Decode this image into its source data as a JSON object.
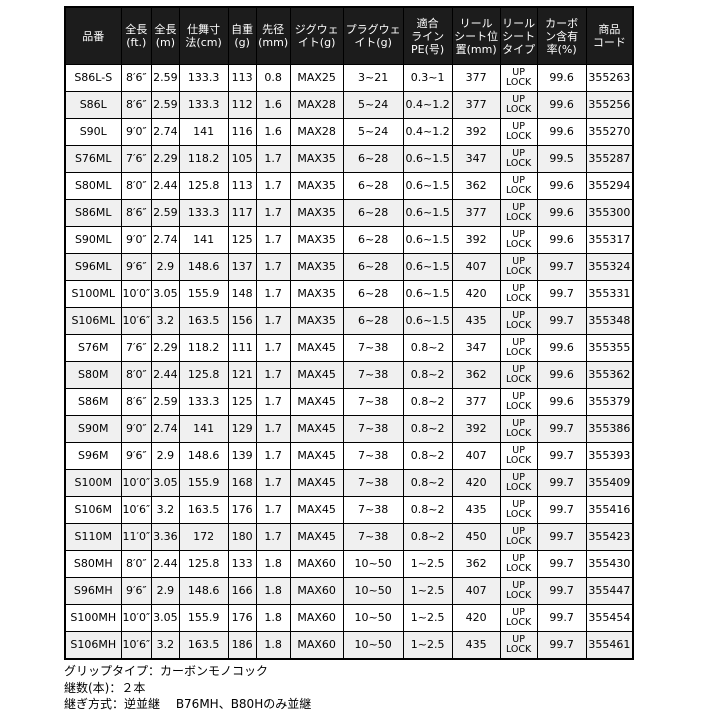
{
  "colors": {
    "header_bg": "#1c1c1c",
    "header_text": "#ffffff",
    "row_bg": "#ffffff",
    "row_alt_bg": "#f0f0f0",
    "border": "#000000"
  },
  "table": {
    "headers": [
      "品番",
      "全長\n(ft.)",
      "全長\n(m)",
      "仕舞寸\n法(cm)",
      "自重\n(g)",
      "先径\n(mm)",
      "ジグウェ\nイト(g)",
      "プラグウェ\nイト(g)",
      "適合\nライン\nPE(号)",
      "リール\nシート位\n置(mm)",
      "リール\nシート\nタイプ",
      "カーボ\nン含有\n率(%)",
      "商品\nコード"
    ],
    "rows": [
      [
        "S86L-S",
        "8′6″",
        "2.59",
        "133.3",
        "113",
        "0.8",
        "MAX25",
        "3~21",
        "0.3~1",
        "377",
        "UP\nLOCK",
        "99.6",
        "355263"
      ],
      [
        "S86L",
        "8′6″",
        "2.59",
        "133.3",
        "112",
        "1.6",
        "MAX28",
        "5~24",
        "0.4~1.2",
        "377",
        "UP\nLOCK",
        "99.6",
        "355256"
      ],
      [
        "S90L",
        "9′0″",
        "2.74",
        "141",
        "116",
        "1.6",
        "MAX28",
        "5~24",
        "0.4~1.2",
        "392",
        "UP\nLOCK",
        "99.6",
        "355270"
      ],
      [
        "S76ML",
        "7′6″",
        "2.29",
        "118.2",
        "105",
        "1.7",
        "MAX35",
        "6~28",
        "0.6~1.5",
        "347",
        "UP\nLOCK",
        "99.5",
        "355287"
      ],
      [
        "S80ML",
        "8′0″",
        "2.44",
        "125.8",
        "113",
        "1.7",
        "MAX35",
        "6~28",
        "0.6~1.5",
        "362",
        "UP\nLOCK",
        "99.6",
        "355294"
      ],
      [
        "S86ML",
        "8′6″",
        "2.59",
        "133.3",
        "117",
        "1.7",
        "MAX35",
        "6~28",
        "0.6~1.5",
        "377",
        "UP\nLOCK",
        "99.6",
        "355300"
      ],
      [
        "S90ML",
        "9′0″",
        "2.74",
        "141",
        "125",
        "1.7",
        "MAX35",
        "6~28",
        "0.6~1.5",
        "392",
        "UP\nLOCK",
        "99.6",
        "355317"
      ],
      [
        "S96ML",
        "9′6″",
        "2.9",
        "148.6",
        "137",
        "1.7",
        "MAX35",
        "6~28",
        "0.6~1.5",
        "407",
        "UP\nLOCK",
        "99.7",
        "355324"
      ],
      [
        "S100ML",
        "10′0″",
        "3.05",
        "155.9",
        "148",
        "1.7",
        "MAX35",
        "6~28",
        "0.6~1.5",
        "420",
        "UP\nLOCK",
        "99.7",
        "355331"
      ],
      [
        "S106ML",
        "10′6″",
        "3.2",
        "163.5",
        "156",
        "1.7",
        "MAX35",
        "6~28",
        "0.6~1.5",
        "435",
        "UP\nLOCK",
        "99.7",
        "355348"
      ],
      [
        "S76M",
        "7′6″",
        "2.29",
        "118.2",
        "111",
        "1.7",
        "MAX45",
        "7~38",
        "0.8~2",
        "347",
        "UP\nLOCK",
        "99.6",
        "355355"
      ],
      [
        "S80M",
        "8′0″",
        "2.44",
        "125.8",
        "121",
        "1.7",
        "MAX45",
        "7~38",
        "0.8~2",
        "362",
        "UP\nLOCK",
        "99.6",
        "355362"
      ],
      [
        "S86M",
        "8′6″",
        "2.59",
        "133.3",
        "125",
        "1.7",
        "MAX45",
        "7~38",
        "0.8~2",
        "377",
        "UP\nLOCK",
        "99.6",
        "355379"
      ],
      [
        "S90M",
        "9′0″",
        "2.74",
        "141",
        "129",
        "1.7",
        "MAX45",
        "7~38",
        "0.8~2",
        "392",
        "UP\nLOCK",
        "99.7",
        "355386"
      ],
      [
        "S96M",
        "9′6″",
        "2.9",
        "148.6",
        "139",
        "1.7",
        "MAX45",
        "7~38",
        "0.8~2",
        "407",
        "UP\nLOCK",
        "99.7",
        "355393"
      ],
      [
        "S100M",
        "10′0″",
        "3.05",
        "155.9",
        "168",
        "1.7",
        "MAX45",
        "7~38",
        "0.8~2",
        "420",
        "UP\nLOCK",
        "99.7",
        "355409"
      ],
      [
        "S106M",
        "10′6″",
        "3.2",
        "163.5",
        "176",
        "1.7",
        "MAX45",
        "7~38",
        "0.8~2",
        "435",
        "UP\nLOCK",
        "99.7",
        "355416"
      ],
      [
        "S110M",
        "11′0″",
        "3.36",
        "172",
        "180",
        "1.7",
        "MAX45",
        "7~38",
        "0.8~2",
        "450",
        "UP\nLOCK",
        "99.7",
        "355423"
      ],
      [
        "S80MH",
        "8′0″",
        "2.44",
        "125.8",
        "133",
        "1.8",
        "MAX60",
        "10~50",
        "1~2.5",
        "362",
        "UP\nLOCK",
        "99.7",
        "355430"
      ],
      [
        "S96MH",
        "9′6″",
        "2.9",
        "148.6",
        "166",
        "1.8",
        "MAX60",
        "10~50",
        "1~2.5",
        "407",
        "UP\nLOCK",
        "99.7",
        "355447"
      ],
      [
        "S100MH",
        "10′0″",
        "3.05",
        "155.9",
        "176",
        "1.8",
        "MAX60",
        "10~50",
        "1~2.5",
        "420",
        "UP\nLOCK",
        "99.7",
        "355454"
      ],
      [
        "S106MH",
        "10′6″",
        "3.2",
        "163.5",
        "186",
        "1.8",
        "MAX60",
        "10~50",
        "1~2.5",
        "435",
        "UP\nLOCK",
        "99.7",
        "355461"
      ]
    ]
  },
  "footer": {
    "lines": [
      "グリップタイプ：カーボンモノコック",
      "継数(本)：２本",
      "継ぎ方式：逆並継　 B76MH、B80Hのみ並継"
    ]
  }
}
